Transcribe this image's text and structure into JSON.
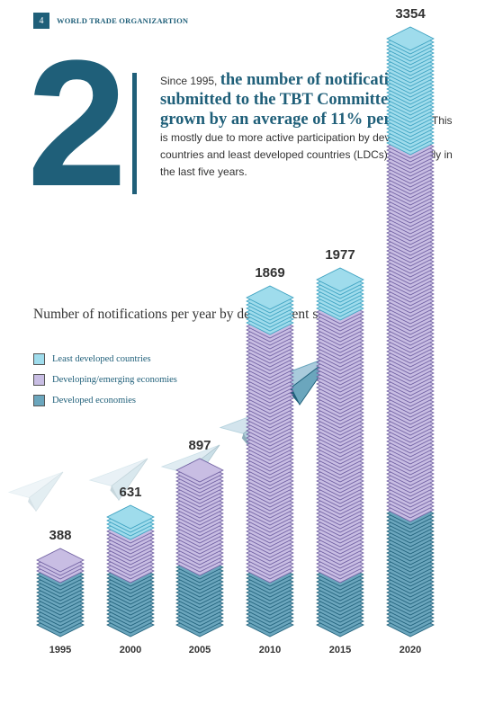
{
  "header": {
    "page_number": "4",
    "organization": "WORLD TRADE ORGANIZARTION"
  },
  "intro": {
    "big_number": "2",
    "lead_in": "Since 1995,",
    "highlight": "the number of notifications submitted to the TBT Committee has grown by an average of 11% per year.",
    "body": "This is mostly due to more active participation by developing countries and least developed countries (LDCs), especially in the last five years."
  },
  "colors": {
    "primary": "#1f5f79",
    "least_developed": "#9fdcec",
    "developing": "#c8bde3",
    "developed": "#6ba6bd"
  },
  "chart_data": {
    "type": "bar",
    "title": "Number of notifications per year by development status",
    "categories": [
      "1995",
      "2000",
      "2005",
      "2010",
      "2015",
      "2020"
    ],
    "totals": [
      388,
      631,
      897,
      1869,
      1977,
      3354
    ],
    "series": [
      {
        "name": "Least developed countries",
        "values": [
          0,
          80,
          0,
          160,
          180,
          620
        ]
      },
      {
        "name": "Developing/emerging economies",
        "values": [
          90,
          250,
          560,
          1400,
          1500,
          2080
        ]
      },
      {
        "name": "Developed economies",
        "values": [
          298,
          301,
          337,
          309,
          297,
          654
        ]
      }
    ],
    "stacking": "stacked",
    "legend_position": "top-left",
    "grid": false
  }
}
